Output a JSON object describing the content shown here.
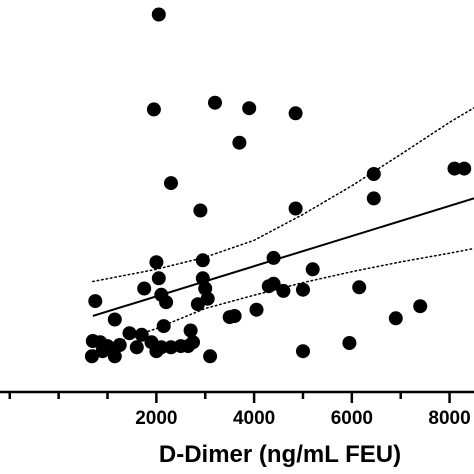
{
  "chart_data": {
    "type": "scatter",
    "title": "",
    "xlabel": "D-Dimer (ng/mL FEU)",
    "ylabel": "",
    "xlim": [
      -1200,
      8500
    ],
    "ylim": [
      0,
      100
    ],
    "xticks": [
      2000,
      4000,
      6000,
      8000
    ],
    "x_tick_labels": [
      "2000",
      "4000",
      "6000",
      "8000"
    ],
    "grid": false,
    "legend": "none",
    "colors": {
      "points": "#000000",
      "axis": "#000000",
      "fit_line": "#000000",
      "ci_band": "#000000"
    },
    "fit_line": {
      "x": [
        700,
        8500
      ],
      "y": [
        19.4,
        49.4
      ]
    },
    "ci_upper": {
      "x": [
        700,
        2000,
        3000,
        4000,
        5000,
        6000,
        7000,
        8000,
        8500
      ],
      "y": [
        28.2,
        31.3,
        34.4,
        38.7,
        45.3,
        52.6,
        60.6,
        68.8,
        72.5
      ]
    },
    "ci_lower": {
      "x": [
        700,
        2000,
        3000,
        4000,
        5000,
        6000,
        7000,
        8000,
        8500
      ],
      "y": [
        10.6,
        16.2,
        21.3,
        24.7,
        27.9,
        30.7,
        33.2,
        35.4,
        36.6
      ]
    },
    "points": [
      {
        "x": 680,
        "y": 9.1
      },
      {
        "x": 700,
        "y": 13.0
      },
      {
        "x": 750,
        "y": 23.2
      },
      {
        "x": 850,
        "y": 12.7
      },
      {
        "x": 900,
        "y": 10.4
      },
      {
        "x": 1000,
        "y": 11.7
      },
      {
        "x": 1150,
        "y": 18.5
      },
      {
        "x": 1150,
        "y": 9.1
      },
      {
        "x": 1250,
        "y": 12.0
      },
      {
        "x": 1450,
        "y": 15.0
      },
      {
        "x": 1600,
        "y": 11.4
      },
      {
        "x": 1700,
        "y": 14.6
      },
      {
        "x": 1750,
        "y": 26.4
      },
      {
        "x": 1900,
        "y": 12.7
      },
      {
        "x": 2000,
        "y": 10.4
      },
      {
        "x": 2000,
        "y": 33.1
      },
      {
        "x": 2050,
        "y": 29.0
      },
      {
        "x": 2100,
        "y": 11.4
      },
      {
        "x": 2100,
        "y": 24.8
      },
      {
        "x": 2150,
        "y": 16.8
      },
      {
        "x": 2200,
        "y": 22.9
      },
      {
        "x": 2300,
        "y": 11.4
      },
      {
        "x": 2300,
        "y": 53.3
      },
      {
        "x": 2500,
        "y": 11.7
      },
      {
        "x": 2650,
        "y": 11.7
      },
      {
        "x": 2700,
        "y": 15.7
      },
      {
        "x": 2750,
        "y": 12.7
      },
      {
        "x": 2850,
        "y": 22.4
      },
      {
        "x": 2900,
        "y": 46.3
      },
      {
        "x": 2950,
        "y": 33.6
      },
      {
        "x": 2950,
        "y": 29.0
      },
      {
        "x": 3000,
        "y": 26.4
      },
      {
        "x": 3100,
        "y": 9.1
      },
      {
        "x": 3050,
        "y": 23.8
      },
      {
        "x": 1950,
        "y": 72.1
      },
      {
        "x": 2050,
        "y": 96.3
      },
      {
        "x": 3200,
        "y": 73.8
      },
      {
        "x": 3500,
        "y": 19.1
      },
      {
        "x": 3600,
        "y": 19.4
      },
      {
        "x": 3700,
        "y": 63.6
      },
      {
        "x": 3900,
        "y": 72.4
      },
      {
        "x": 4050,
        "y": 21.0
      },
      {
        "x": 4300,
        "y": 27.0
      },
      {
        "x": 4400,
        "y": 27.6
      },
      {
        "x": 4400,
        "y": 34.2
      },
      {
        "x": 4600,
        "y": 25.8
      },
      {
        "x": 4850,
        "y": 71.1
      },
      {
        "x": 4850,
        "y": 46.8
      },
      {
        "x": 5000,
        "y": 10.4
      },
      {
        "x": 5000,
        "y": 26.1
      },
      {
        "x": 5200,
        "y": 31.3
      },
      {
        "x": 5950,
        "y": 12.5
      },
      {
        "x": 6150,
        "y": 26.7
      },
      {
        "x": 6450,
        "y": 55.6
      },
      {
        "x": 6450,
        "y": 49.4
      },
      {
        "x": 6900,
        "y": 18.8
      },
      {
        "x": 7400,
        "y": 21.9
      },
      {
        "x": 8100,
        "y": 57.0
      },
      {
        "x": 8300,
        "y": 57.0
      }
    ]
  }
}
